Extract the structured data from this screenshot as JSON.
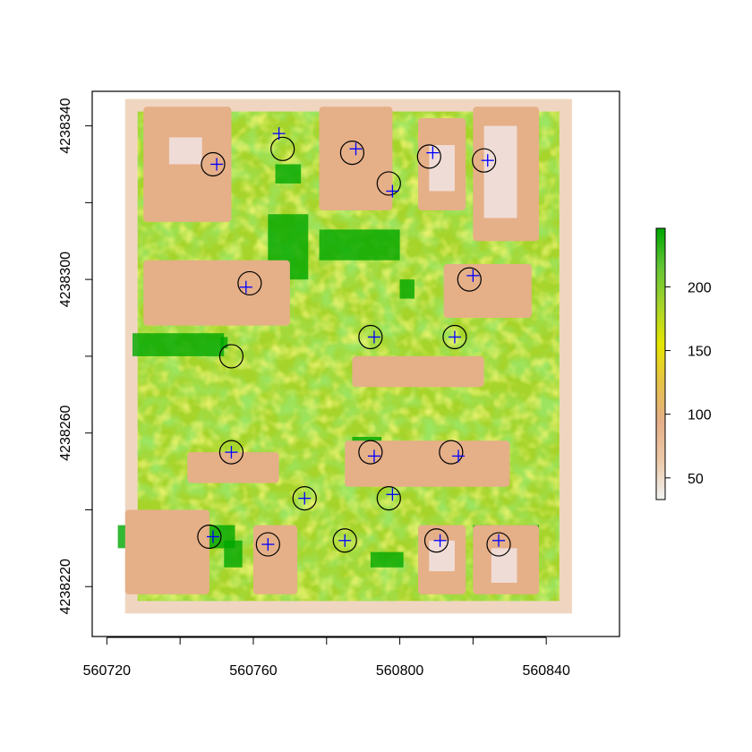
{
  "chart_data": {
    "type": "heatmap",
    "title": "",
    "xlabel": "",
    "ylabel": "",
    "xlim": [
      560716,
      560860
    ],
    "ylim": [
      4238207,
      4238349
    ],
    "x_ticks": [
      560720,
      560740,
      560760,
      560780,
      560800,
      560820,
      560840
    ],
    "x_tick_labels": [
      "560720",
      "",
      "560760",
      "",
      "560800",
      "",
      "560840"
    ],
    "y_ticks": [
      4238220,
      4238240,
      4238260,
      4238280,
      4238300,
      4238320,
      4238340
    ],
    "y_tick_labels": [
      "4238220",
      "",
      "4238260",
      "",
      "4238300",
      "",
      "4238340"
    ],
    "raster_extent": {
      "xmin": 560725,
      "xmax": 560847,
      "ymin": 4238213,
      "ymax": 4238347
    },
    "colorbar": {
      "min": 33,
      "max": 246,
      "ticks": [
        50,
        100,
        150,
        200
      ],
      "tick_labels": [
        "50",
        "100",
        "150",
        "200"
      ],
      "colors": [
        "#f2f2f2",
        "#ecc9a8",
        "#e5af88",
        "#e6c14a",
        "#e6e600",
        "#a6d42a",
        "#63c536",
        "#00a600"
      ]
    },
    "bright_zones": [
      {
        "x0": 560727,
        "y0": 4238280,
        "x1": 560752,
        "y1": 4238286
      },
      {
        "x0": 560751,
        "y0": 4238282,
        "x1": 560753,
        "y1": 4238285
      },
      {
        "x0": 560723,
        "y0": 4238230,
        "x1": 560755,
        "y1": 4238236
      },
      {
        "x0": 560764,
        "y0": 4238300,
        "x1": 560775,
        "y1": 4238317
      },
      {
        "x0": 560778,
        "y0": 4238305,
        "x1": 560800,
        "y1": 4238313
      },
      {
        "x0": 560800,
        "y0": 4238295,
        "x1": 560804,
        "y1": 4238300
      },
      {
        "x0": 560766,
        "y0": 4238325,
        "x1": 560773,
        "y1": 4238330
      },
      {
        "x0": 560787,
        "y0": 4238254,
        "x1": 560795,
        "y1": 4238259
      },
      {
        "x0": 560752,
        "y0": 4238225,
        "x1": 560757,
        "y1": 4238232
      },
      {
        "x0": 560792,
        "y0": 4238225,
        "x1": 560801,
        "y1": 4238229
      },
      {
        "x0": 560820,
        "y0": 4238232,
        "x1": 560838,
        "y1": 4238236
      }
    ],
    "buildings": [
      {
        "x0": 560730,
        "y0": 4238315,
        "x1": 560754,
        "y1": 4238345
      },
      {
        "x0": 560778,
        "y0": 4238318,
        "x1": 560798,
        "y1": 4238345
      },
      {
        "x0": 560805,
        "y0": 4238318,
        "x1": 560818,
        "y1": 4238342
      },
      {
        "x0": 560820,
        "y0": 4238310,
        "x1": 560838,
        "y1": 4238345
      },
      {
        "x0": 560730,
        "y0": 4238288,
        "x1": 560770,
        "y1": 4238305
      },
      {
        "x0": 560812,
        "y0": 4238290,
        "x1": 560836,
        "y1": 4238304
      },
      {
        "x0": 560787,
        "y0": 4238272,
        "x1": 560823,
        "y1": 4238280
      },
      {
        "x0": 560742,
        "y0": 4238247,
        "x1": 560767,
        "y1": 4238255
      },
      {
        "x0": 560785,
        "y0": 4238246,
        "x1": 560830,
        "y1": 4238258
      },
      {
        "x0": 560725,
        "y0": 4238218,
        "x1": 560748,
        "y1": 4238240
      },
      {
        "x0": 560760,
        "y0": 4238218,
        "x1": 560772,
        "y1": 4238236
      },
      {
        "x0": 560805,
        "y0": 4238218,
        "x1": 560818,
        "y1": 4238236
      },
      {
        "x0": 560820,
        "y0": 4238218,
        "x1": 560838,
        "y1": 4238236
      }
    ],
    "pale_zones": [
      {
        "x0": 560737,
        "y0": 4238330,
        "x1": 560746,
        "y1": 4238337
      },
      {
        "x0": 560808,
        "y0": 4238323,
        "x1": 560815,
        "y1": 4238335
      },
      {
        "x0": 560823,
        "y0": 4238316,
        "x1": 560832,
        "y1": 4238340
      },
      {
        "x0": 560808,
        "y0": 4238224,
        "x1": 560815,
        "y1": 4238232
      },
      {
        "x0": 560825,
        "y0": 4238221,
        "x1": 560832,
        "y1": 4238230
      }
    ],
    "crosses": [
      {
        "x": 560750,
        "y": 4238330
      },
      {
        "x": 560767,
        "y": 4238338
      },
      {
        "x": 560788,
        "y": 4238334
      },
      {
        "x": 560809,
        "y": 4238333
      },
      {
        "x": 560824,
        "y": 4238331
      },
      {
        "x": 560798,
        "y": 4238323
      },
      {
        "x": 560758,
        "y": 4238298
      },
      {
        "x": 560820,
        "y": 4238301
      },
      {
        "x": 560793,
        "y": 4238285
      },
      {
        "x": 560815,
        "y": 4238285
      },
      {
        "x": 560754,
        "y": 4238255
      },
      {
        "x": 560793,
        "y": 4238254
      },
      {
        "x": 560816,
        "y": 4238254
      },
      {
        "x": 560774,
        "y": 4238243
      },
      {
        "x": 560798,
        "y": 4238244
      },
      {
        "x": 560749,
        "y": 4238233
      },
      {
        "x": 560764,
        "y": 4238231
      },
      {
        "x": 560785,
        "y": 4238232
      },
      {
        "x": 560811,
        "y": 4238232
      },
      {
        "x": 560827,
        "y": 4238232
      }
    ],
    "circles": [
      {
        "x": 560749,
        "y": 4238330
      },
      {
        "x": 560768,
        "y": 4238334
      },
      {
        "x": 560787,
        "y": 4238333
      },
      {
        "x": 560808,
        "y": 4238332
      },
      {
        "x": 560823,
        "y": 4238331
      },
      {
        "x": 560797,
        "y": 4238325
      },
      {
        "x": 560759,
        "y": 4238299
      },
      {
        "x": 560819,
        "y": 4238300
      },
      {
        "x": 560792,
        "y": 4238285
      },
      {
        "x": 560815,
        "y": 4238285
      },
      {
        "x": 560754,
        "y": 4238280
      },
      {
        "x": 560754,
        "y": 4238255
      },
      {
        "x": 560792,
        "y": 4238255
      },
      {
        "x": 560814,
        "y": 4238255
      },
      {
        "x": 560774,
        "y": 4238243
      },
      {
        "x": 560797,
        "y": 4238243
      },
      {
        "x": 560748,
        "y": 4238233
      },
      {
        "x": 560764,
        "y": 4238231
      },
      {
        "x": 560785,
        "y": 4238232
      },
      {
        "x": 560810,
        "y": 4238232
      },
      {
        "x": 560827,
        "y": 4238231
      }
    ]
  }
}
